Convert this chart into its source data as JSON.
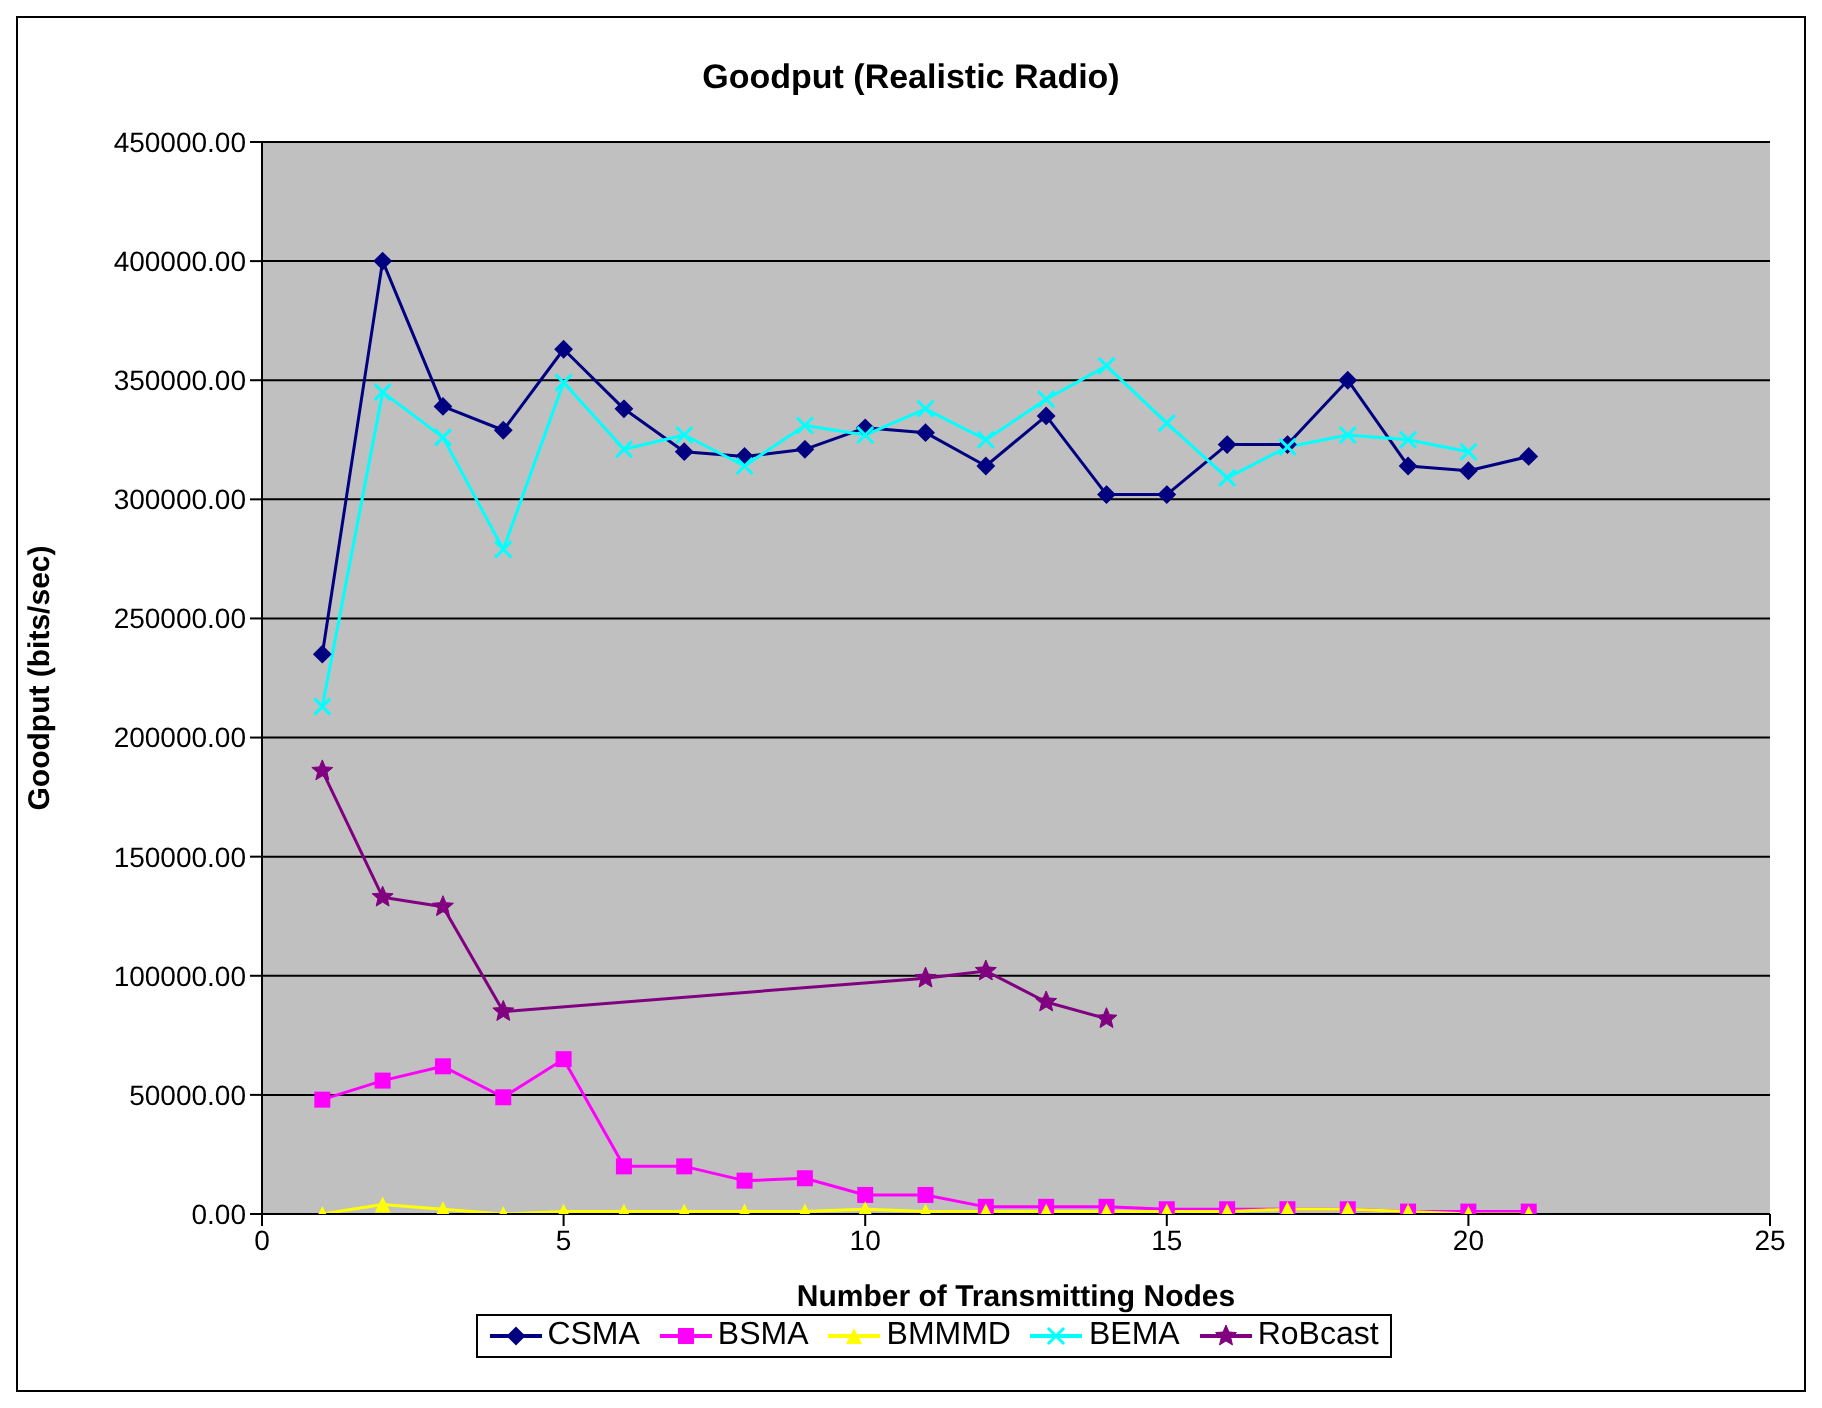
{
  "chart_data": {
    "type": "line",
    "title": "Goodput (Realistic Radio)",
    "xlabel": "Number of Transmitting Nodes",
    "ylabel": "Goodput (bits/sec)",
    "xlim": [
      0,
      25
    ],
    "xticks": [
      0,
      5,
      10,
      15,
      20,
      25
    ],
    "ylim": [
      0,
      450000
    ],
    "yticks": [
      {
        "value": 0,
        "label": "0.00"
      },
      {
        "value": 50000,
        "label": "50000.00"
      },
      {
        "value": 100000,
        "label": "100000.00"
      },
      {
        "value": 150000,
        "label": "150000.00"
      },
      {
        "value": 200000,
        "label": "200000.00"
      },
      {
        "value": 250000,
        "label": "250000.00"
      },
      {
        "value": 300000,
        "label": "300000.00"
      },
      {
        "value": 350000,
        "label": "350000.00"
      },
      {
        "value": 400000,
        "label": "400000.00"
      },
      {
        "value": 450000,
        "label": "450000.00"
      }
    ],
    "grid": "y",
    "legend": "bottom",
    "series": [
      {
        "name": "CSMA",
        "color": "#000080",
        "marker": "diamond",
        "x": [
          1,
          2,
          3,
          4,
          5,
          6,
          7,
          8,
          9,
          10,
          11,
          12,
          13,
          14,
          15,
          16,
          17,
          18,
          19,
          20,
          21
        ],
        "values": [
          235000,
          400000,
          339000,
          329000,
          363000,
          338000,
          320000,
          318000,
          321000,
          330000,
          328000,
          314000,
          335000,
          302000,
          302000,
          323000,
          323000,
          350000,
          314000,
          312000,
          318000
        ]
      },
      {
        "name": "BSMA",
        "color": "#ff00ff",
        "marker": "square",
        "x": [
          1,
          2,
          3,
          4,
          5,
          6,
          7,
          8,
          9,
          10,
          11,
          12,
          13,
          14,
          15,
          16,
          17,
          18,
          19,
          20,
          21
        ],
        "values": [
          48000,
          56000,
          62000,
          49000,
          65000,
          20000,
          20000,
          14000,
          15000,
          8000,
          8000,
          3000,
          3000,
          3000,
          2000,
          2000,
          2000,
          2000,
          1000,
          1000,
          1000
        ]
      },
      {
        "name": "BMMMD",
        "color": "#ffff00",
        "marker": "triangle",
        "x": [
          1,
          2,
          3,
          4,
          5,
          6,
          7,
          8,
          9,
          10,
          11,
          12,
          13,
          14,
          15,
          16,
          17,
          18,
          19,
          20,
          21
        ],
        "values": [
          0,
          4000,
          2000,
          0,
          1000,
          1000,
          1000,
          1000,
          1000,
          2000,
          1000,
          1000,
          1000,
          1000,
          1000,
          1000,
          2000,
          2000,
          1000,
          0,
          0
        ]
      },
      {
        "name": "BEMA",
        "color": "#00ffff",
        "marker": "cross",
        "x": [
          1,
          2,
          3,
          4,
          5,
          6,
          7,
          8,
          9,
          10,
          11,
          12,
          13,
          14,
          15,
          16,
          17,
          18,
          19,
          20
        ],
        "values": [
          213000,
          345000,
          326000,
          279000,
          349000,
          321000,
          327000,
          314000,
          331000,
          327000,
          338000,
          325000,
          342000,
          356000,
          332000,
          309000,
          322000,
          327000,
          325000,
          320000
        ]
      },
      {
        "name": "RoBcast",
        "color": "#800080",
        "marker": "star",
        "x": [
          1,
          2,
          3,
          4,
          11,
          12,
          13,
          14
        ],
        "values": [
          186000,
          133000,
          129000,
          85000,
          99000,
          102000,
          89000,
          82000
        ]
      }
    ]
  }
}
